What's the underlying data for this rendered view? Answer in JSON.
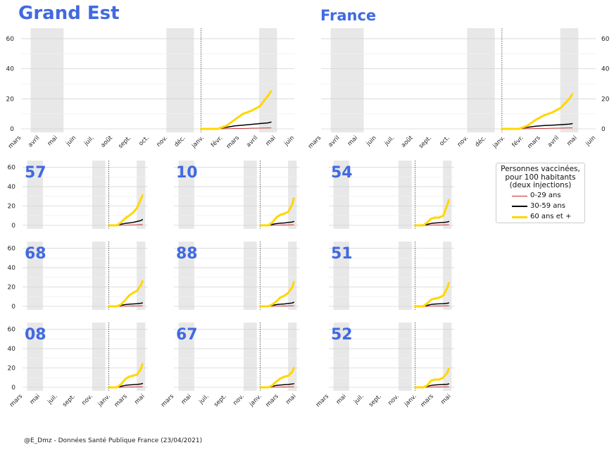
{
  "colors": {
    "title": "#4169E1",
    "shade": "#e8e8e8",
    "grid": "#d9d9d9",
    "series": {
      "0-29 ans": "#c62828",
      "30-59 ans": "#000000",
      "60 ans et +": "#FFD700"
    }
  },
  "legend": {
    "title_lines": [
      "Personnes vaccinées,",
      "pour 100 habitants",
      "(deux injections)"
    ],
    "entries": [
      "0-29 ans",
      "30-59 ans",
      "60 ans et +"
    ]
  },
  "footer": "@E_Dmz - Données Santé Publique France (23/04/2021)",
  "chart_data": [
    {
      "type": "line",
      "title": "Grand Est",
      "panel": "large-left",
      "y_ticks": [
        0,
        20,
        40,
        60
      ],
      "ylim": [
        0,
        67
      ],
      "x_tick_labels": [
        "mars",
        "avril",
        "mai",
        "juin",
        "juil.",
        "août",
        "sept.",
        "oct.",
        "nov.",
        "déc.",
        "janv.",
        "févr.",
        "mars",
        "avril",
        "mai",
        "juin"
      ],
      "shaded_periods": [
        [
          "2020-03-17",
          "2020-05-11"
        ],
        [
          "2020-10-30",
          "2020-12-15"
        ],
        [
          "2021-04-03",
          "2021-05-03"
        ]
      ],
      "vline": "2020-12-27",
      "x": [
        "2020-12-27",
        "2021-01-10",
        "2021-01-24",
        "2021-02-07",
        "2021-02-21",
        "2021-03-07",
        "2021-03-21",
        "2021-04-04",
        "2021-04-18",
        "2021-04-23"
      ],
      "series": [
        {
          "name": "0-29 ans",
          "values": [
            0,
            0,
            0,
            0.1,
            0.2,
            0.3,
            0.4,
            0.5,
            0.6,
            0.6
          ]
        },
        {
          "name": "30-59 ans",
          "values": [
            0,
            0,
            0.2,
            1,
            2,
            2.5,
            3,
            3.5,
            4,
            4.5
          ]
        },
        {
          "name": "60 ans et +",
          "values": [
            0,
            0,
            0,
            2,
            6,
            10,
            12,
            15,
            22,
            25
          ]
        }
      ]
    },
    {
      "type": "line",
      "title": "France",
      "panel": "large-right",
      "y_ticks": [
        0,
        20,
        40,
        60
      ],
      "ylim": [
        0,
        67
      ],
      "x_tick_labels": [
        "mars",
        "avril",
        "mai",
        "juin",
        "juil.",
        "août",
        "sept.",
        "oct.",
        "nov.",
        "déc.",
        "janv.",
        "févr.",
        "mars",
        "avril",
        "mai",
        "juin"
      ],
      "shaded_periods": [
        [
          "2020-03-17",
          "2020-05-11"
        ],
        [
          "2020-10-30",
          "2020-12-15"
        ],
        [
          "2021-04-03",
          "2021-05-03"
        ]
      ],
      "vline": "2020-12-27",
      "x": [
        "2020-12-27",
        "2021-01-10",
        "2021-01-24",
        "2021-02-07",
        "2021-02-21",
        "2021-03-07",
        "2021-03-21",
        "2021-04-04",
        "2021-04-18",
        "2021-04-23"
      ],
      "series": [
        {
          "name": "0-29 ans",
          "values": [
            0,
            0,
            0,
            0.1,
            0.2,
            0.3,
            0.4,
            0.5,
            0.6,
            0.6
          ]
        },
        {
          "name": "30-59 ans",
          "values": [
            0,
            0,
            0.2,
            1,
            1.8,
            2.2,
            2.5,
            2.8,
            3.2,
            3.5
          ]
        },
        {
          "name": "60 ans et +",
          "values": [
            0,
            0,
            0,
            2,
            6,
            9,
            11,
            14,
            20,
            23
          ]
        }
      ]
    },
    {
      "type": "line",
      "title": "57",
      "panel": "small",
      "x": [
        "2020-12-27",
        "2021-01-10",
        "2021-01-24",
        "2021-02-07",
        "2021-02-21",
        "2021-03-07",
        "2021-03-21",
        "2021-04-04",
        "2021-04-18",
        "2021-04-23"
      ],
      "series": [
        {
          "name": "0-29 ans",
          "values": [
            0,
            0,
            0,
            0.1,
            0.2,
            0.3,
            0.5,
            0.6,
            0.7,
            0.7
          ]
        },
        {
          "name": "30-59 ans",
          "values": [
            0,
            0,
            0.3,
            1.2,
            2,
            2.5,
            3,
            4,
            5,
            6
          ]
        },
        {
          "name": "60 ans et +",
          "values": [
            0,
            0,
            0,
            3,
            7,
            10,
            13,
            18,
            27,
            31
          ]
        }
      ]
    },
    {
      "type": "line",
      "title": "10",
      "panel": "small",
      "x": [
        "2020-12-27",
        "2021-01-10",
        "2021-01-24",
        "2021-02-07",
        "2021-02-21",
        "2021-03-07",
        "2021-03-21",
        "2021-04-04",
        "2021-04-18",
        "2021-04-23"
      ],
      "series": [
        {
          "name": "0-29 ans",
          "values": [
            0,
            0,
            0,
            0.1,
            0.2,
            0.3,
            0.4,
            0.5,
            0.6,
            0.6
          ]
        },
        {
          "name": "30-59 ans",
          "values": [
            0,
            0,
            0.2,
            1,
            1.8,
            2.2,
            2.5,
            3,
            3.5,
            4
          ]
        },
        {
          "name": "60 ans et +",
          "values": [
            0,
            0,
            0,
            3,
            8,
            11,
            12,
            14,
            22,
            28
          ]
        }
      ]
    },
    {
      "type": "line",
      "title": "54",
      "panel": "small",
      "x": [
        "2020-12-27",
        "2021-01-10",
        "2021-01-24",
        "2021-02-07",
        "2021-02-21",
        "2021-03-07",
        "2021-03-21",
        "2021-04-04",
        "2021-04-18",
        "2021-04-23"
      ],
      "series": [
        {
          "name": "0-29 ans",
          "values": [
            0,
            0,
            0,
            0.1,
            0.2,
            0.3,
            0.4,
            0.5,
            0.6,
            0.6
          ]
        },
        {
          "name": "30-59 ans",
          "values": [
            0,
            0,
            0.2,
            1,
            2,
            2.5,
            2.8,
            3,
            3.5,
            4
          ]
        },
        {
          "name": "60 ans et +",
          "values": [
            0,
            0,
            0,
            3,
            7,
            8,
            8,
            10,
            21,
            26
          ]
        }
      ]
    },
    {
      "type": "line",
      "title": "68",
      "panel": "small",
      "x": [
        "2020-12-27",
        "2021-01-10",
        "2021-01-24",
        "2021-02-07",
        "2021-02-21",
        "2021-03-07",
        "2021-03-21",
        "2021-04-04",
        "2021-04-18",
        "2021-04-23"
      ],
      "series": [
        {
          "name": "0-29 ans",
          "values": [
            0,
            0,
            0,
            0.1,
            0.2,
            0.3,
            0.4,
            0.5,
            0.6,
            0.6
          ]
        },
        {
          "name": "30-59 ans",
          "values": [
            0,
            0,
            0.2,
            1,
            1.8,
            2.2,
            2.5,
            2.8,
            3.2,
            3.6
          ]
        },
        {
          "name": "60 ans et +",
          "values": [
            0,
            0,
            0,
            2,
            6,
            11,
            14,
            16,
            22,
            26
          ]
        }
      ]
    },
    {
      "type": "line",
      "title": "88",
      "panel": "small",
      "x": [
        "2020-12-27",
        "2021-01-10",
        "2021-01-24",
        "2021-02-07",
        "2021-02-21",
        "2021-03-07",
        "2021-03-21",
        "2021-04-04",
        "2021-04-18",
        "2021-04-23"
      ],
      "series": [
        {
          "name": "0-29 ans",
          "values": [
            0,
            0,
            0,
            0.1,
            0.2,
            0.3,
            0.4,
            0.5,
            0.6,
            0.6
          ]
        },
        {
          "name": "30-59 ans",
          "values": [
            0,
            0,
            0.2,
            1,
            1.8,
            2.2,
            2.5,
            3,
            3.5,
            4.2
          ]
        },
        {
          "name": "60 ans et +",
          "values": [
            0,
            0,
            0,
            2,
            5,
            9,
            11,
            14,
            20,
            25
          ]
        }
      ]
    },
    {
      "type": "line",
      "title": "51",
      "panel": "small",
      "x": [
        "2020-12-27",
        "2021-01-10",
        "2021-01-24",
        "2021-02-07",
        "2021-02-21",
        "2021-03-07",
        "2021-03-21",
        "2021-04-04",
        "2021-04-18",
        "2021-04-23"
      ],
      "series": [
        {
          "name": "0-29 ans",
          "values": [
            0,
            0,
            0,
            0.1,
            0.2,
            0.3,
            0.4,
            0.5,
            0.6,
            0.6
          ]
        },
        {
          "name": "30-59 ans",
          "values": [
            0,
            0,
            0.2,
            1,
            2,
            2.4,
            2.6,
            2.8,
            3.2,
            3.6
          ]
        },
        {
          "name": "60 ans et +",
          "values": [
            0,
            0,
            0,
            3,
            7,
            8,
            9,
            11,
            19,
            24
          ]
        }
      ]
    },
    {
      "type": "line",
      "title": "08",
      "panel": "small",
      "x": [
        "2020-12-27",
        "2021-01-10",
        "2021-01-24",
        "2021-02-07",
        "2021-02-21",
        "2021-03-07",
        "2021-03-21",
        "2021-04-04",
        "2021-04-18",
        "2021-04-23"
      ],
      "series": [
        {
          "name": "0-29 ans",
          "values": [
            0,
            0,
            0,
            0.1,
            0.2,
            0.3,
            0.4,
            0.5,
            0.6,
            0.6
          ]
        },
        {
          "name": "30-59 ans",
          "values": [
            0,
            0,
            0.2,
            1,
            2,
            2.5,
            2.8,
            3,
            3.5,
            4
          ]
        },
        {
          "name": "60 ans et +",
          "values": [
            0,
            0,
            0,
            3,
            8,
            11,
            12,
            13,
            19,
            24
          ]
        }
      ]
    },
    {
      "type": "line",
      "title": "67",
      "panel": "small",
      "x": [
        "2020-12-27",
        "2021-01-10",
        "2021-01-24",
        "2021-02-07",
        "2021-02-21",
        "2021-03-07",
        "2021-03-21",
        "2021-04-04",
        "2021-04-18",
        "2021-04-23"
      ],
      "series": [
        {
          "name": "0-29 ans",
          "values": [
            0,
            0,
            0,
            0.1,
            0.2,
            0.3,
            0.4,
            0.5,
            0.6,
            0.6
          ]
        },
        {
          "name": "30-59 ans",
          "values": [
            0,
            0,
            0.2,
            1,
            2,
            2.4,
            2.7,
            3,
            3.4,
            3.8
          ]
        },
        {
          "name": "60 ans et +",
          "values": [
            0,
            0,
            0,
            2,
            6,
            9,
            11,
            12,
            16,
            20
          ]
        }
      ]
    },
    {
      "type": "line",
      "title": "52",
      "panel": "small",
      "x": [
        "2020-12-27",
        "2021-01-10",
        "2021-01-24",
        "2021-02-07",
        "2021-02-21",
        "2021-03-07",
        "2021-03-21",
        "2021-04-04",
        "2021-04-18",
        "2021-04-23"
      ],
      "series": [
        {
          "name": "0-29 ans",
          "values": [
            0,
            0,
            0,
            0.1,
            0.2,
            0.3,
            0.4,
            0.5,
            0.6,
            0.6
          ]
        },
        {
          "name": "30-59 ans",
          "values": [
            0,
            0,
            0.2,
            1,
            2,
            2.5,
            2.7,
            2.9,
            3.2,
            3.6
          ]
        },
        {
          "name": "60 ans et +",
          "values": [
            0,
            0,
            0,
            2,
            7,
            8,
            8,
            10,
            15,
            19
          ]
        }
      ]
    }
  ],
  "small_axis": {
    "y_ticks": [
      0,
      20,
      40,
      60
    ],
    "ylim": [
      0,
      67
    ],
    "x_tick_labels": [
      "mars",
      "mai",
      "juil.",
      "sept.",
      "nov.",
      "janv.",
      "mars",
      "mai"
    ],
    "shaded_periods": [
      [
        "2020-03-17",
        "2020-05-11"
      ],
      [
        "2020-10-30",
        "2020-12-15"
      ],
      [
        "2021-04-03",
        "2021-05-03"
      ]
    ],
    "vline": "2020-12-27"
  }
}
